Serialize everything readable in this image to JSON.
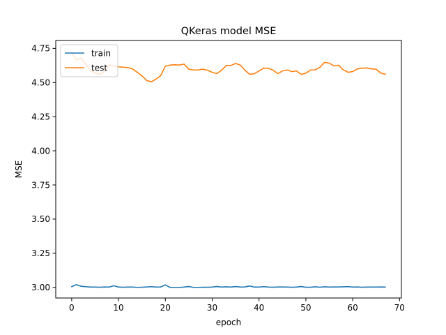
{
  "chart_data": {
    "type": "line",
    "title": "QKeras model MSE",
    "xlabel": "epoch",
    "ylabel": "MSE",
    "xlim": [
      -3.4,
      70.4
    ],
    "ylim": [
      2.922,
      4.808
    ],
    "xticks": [
      0,
      10,
      20,
      30,
      40,
      50,
      60,
      70
    ],
    "yticks": [
      3.0,
      3.25,
      3.5,
      3.75,
      4.0,
      4.25,
      4.5,
      4.75
    ],
    "xtick_labels": [
      "0",
      "10",
      "20",
      "30",
      "40",
      "50",
      "60",
      "70"
    ],
    "ytick_labels": [
      "3.00",
      "3.25",
      "3.50",
      "3.75",
      "4.00",
      "4.25",
      "4.50",
      "4.75"
    ],
    "grid": false,
    "legend": "top-left",
    "series": [
      {
        "name": "train",
        "color": "#1f77b4",
        "x": [
          0,
          1,
          2,
          3,
          4,
          5,
          6,
          7,
          8,
          9,
          10,
          11,
          12,
          13,
          14,
          15,
          16,
          17,
          18,
          19,
          20,
          21,
          22,
          23,
          24,
          25,
          26,
          27,
          28,
          29,
          30,
          31,
          32,
          33,
          34,
          35,
          36,
          37,
          38,
          39,
          40,
          41,
          42,
          43,
          44,
          45,
          46,
          47,
          48,
          49,
          50,
          51,
          52,
          53,
          54,
          55,
          56,
          57,
          58,
          59,
          60,
          61,
          62,
          63,
          64,
          65,
          66,
          67
        ],
        "values": [
          3.005,
          3.02,
          3.008,
          3.005,
          3.002,
          3.002,
          3.001,
          3.003,
          3.002,
          3.012,
          3.002,
          3.001,
          3.002,
          3.002,
          3.0,
          3.001,
          3.003,
          3.005,
          3.002,
          3.003,
          3.018,
          3.0,
          3.0,
          3.0,
          3.002,
          3.006,
          3.0,
          3.0,
          3.001,
          3.001,
          3.002,
          3.006,
          3.002,
          3.004,
          3.002,
          3.006,
          3.002,
          3.003,
          3.01,
          3.002,
          3.002,
          3.005,
          3.002,
          3.001,
          3.003,
          3.003,
          3.002,
          3.001,
          3.002,
          3.006,
          3.001,
          3.001,
          3.004,
          3.001,
          3.004,
          3.002,
          3.003,
          3.003,
          3.004,
          3.005,
          3.002,
          3.003,
          3.001,
          3.002,
          3.002,
          3.002,
          3.003,
          3.002
        ]
      },
      {
        "name": "test",
        "color": "#ff7f0e",
        "x": [
          0,
          1,
          2,
          3,
          4,
          5,
          6,
          7,
          8,
          9,
          10,
          11,
          12,
          13,
          14,
          15,
          16,
          17,
          18,
          19,
          20,
          21,
          22,
          23,
          24,
          25,
          26,
          27,
          28,
          29,
          30,
          31,
          32,
          33,
          34,
          35,
          36,
          37,
          38,
          39,
          40,
          41,
          42,
          43,
          44,
          45,
          46,
          47,
          48,
          49,
          50,
          51,
          52,
          53,
          54,
          55,
          56,
          57,
          58,
          59,
          60,
          61,
          62,
          63,
          64,
          65,
          66,
          67
        ],
        "values": [
          4.72,
          4.665,
          4.68,
          4.635,
          4.59,
          4.57,
          4.56,
          4.58,
          4.63,
          4.62,
          4.615,
          4.612,
          4.61,
          4.6,
          4.575,
          4.55,
          4.515,
          4.505,
          4.525,
          4.55,
          4.62,
          4.628,
          4.63,
          4.628,
          4.635,
          4.598,
          4.592,
          4.592,
          4.598,
          4.59,
          4.575,
          4.565,
          4.59,
          4.625,
          4.625,
          4.64,
          4.628,
          4.59,
          4.56,
          4.565,
          4.585,
          4.605,
          4.605,
          4.59,
          4.565,
          4.585,
          4.592,
          4.58,
          4.585,
          4.56,
          4.568,
          4.592,
          4.592,
          4.612,
          4.648,
          4.642,
          4.622,
          4.627,
          4.593,
          4.575,
          4.58,
          4.6,
          4.605,
          4.607,
          4.6,
          4.598,
          4.57,
          4.56
        ]
      }
    ]
  }
}
